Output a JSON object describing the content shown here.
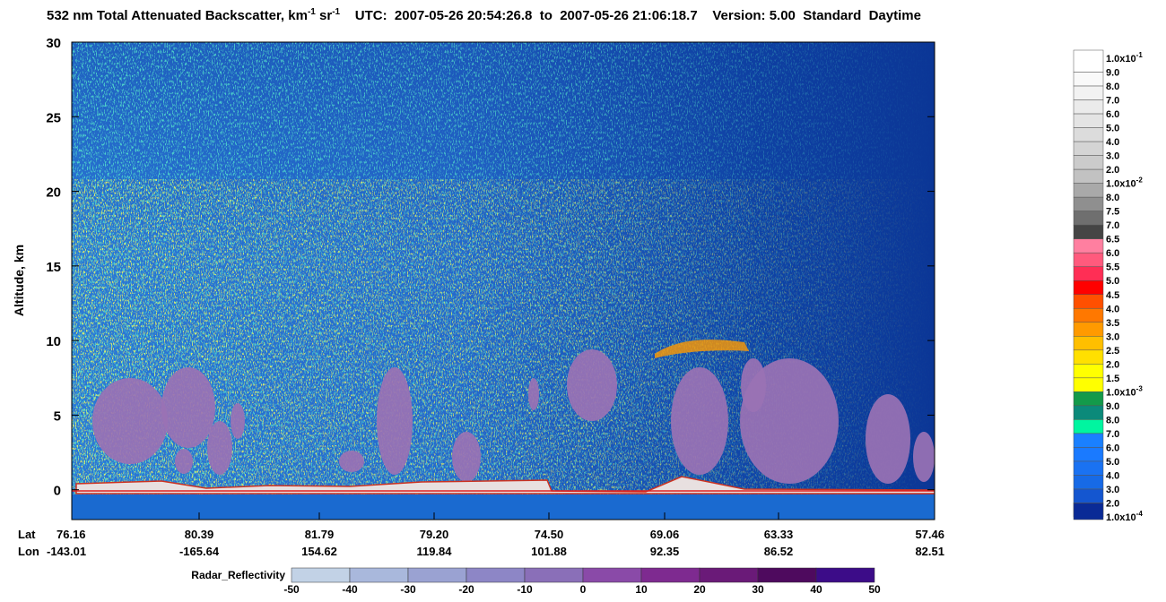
{
  "chart_data": {
    "type": "heatmap",
    "title": [
      "532 nm Total Attenuated Backscatter, km",
      "-1",
      " sr",
      "-1",
      "    UTC:  2007-05-26 20:54:26.8  to  2007-05-26 21:06:18.7    Version: 5.00  Standard  Daytime"
    ],
    "y_label": "Altitude, km",
    "ylim": [
      -2,
      30
    ],
    "yticks": [
      0,
      5,
      10,
      15,
      20,
      25,
      30
    ],
    "lat_label": "Lat",
    "lon_label": "Lon",
    "lat": [
      "76.16",
      "80.39",
      "81.79",
      "79.20",
      "74.50",
      "69.06",
      "63.33",
      "57.46"
    ],
    "lon": [
      "-143.01",
      "-165.64",
      "154.62",
      "119.84",
      "101.88",
      "92.35",
      "86.52",
      "82.51"
    ],
    "colorbar": {
      "labels": [
        {
          "base": "1.0x10",
          "exp": "-1"
        },
        "9.0",
        "8.0",
        "7.0",
        "6.0",
        "5.0",
        "4.0",
        "3.0",
        "2.0",
        {
          "base": "1.0x10",
          "exp": "-2"
        },
        "8.0",
        "7.5",
        "7.0",
        "6.5",
        "6.0",
        "5.5",
        "5.0",
        "4.5",
        "4.0",
        "3.5",
        "3.0",
        "2.5",
        "2.0",
        "1.5",
        {
          "base": "1.0x10",
          "exp": "-3"
        },
        "9.0",
        "8.0",
        "7.0",
        "6.0",
        "5.0",
        "4.0",
        "3.0",
        "2.0",
        {
          "base": "1.0x10",
          "exp": "-4"
        }
      ],
      "colors": [
        "#ffffff",
        "#f9f9f9",
        "#f2f2f2",
        "#ebebeb",
        "#e4e4e4",
        "#dcdcdc",
        "#d4d4d4",
        "#cbcbcb",
        "#c2c2c2",
        "#a9a9a9",
        "#8f8f8f",
        "#6f6f6f",
        "#454545",
        "#ff7fa0",
        "#ff5a7d",
        "#ff2e55",
        "#ff0000",
        "#ff5000",
        "#ff7800",
        "#ff9a00",
        "#ffbf00",
        "#ffe000",
        "#ffff00",
        "#ffff00",
        "#139a4a",
        "#0b8a7a",
        "#00f5a0",
        "#1a80ff",
        "#1a7aff",
        "#1a72f2",
        "#176ae6",
        "#1456d0",
        "#0d3aa8",
        "#0a2a96"
      ]
    },
    "radar_colorbar": {
      "label": "Radar_Reflectivity",
      "ticks": [
        -50,
        -40,
        -30,
        -20,
        -10,
        0,
        10,
        20,
        30,
        40,
        50
      ],
      "colors": [
        "#c2d2e6",
        "#a9b8dc",
        "#9aa2d2",
        "#8d86c6",
        "#8a6fb8",
        "#8a4aa8",
        "#7e2a90",
        "#6a1a78",
        "#4e0a5e",
        "#3c0c88"
      ]
    }
  }
}
